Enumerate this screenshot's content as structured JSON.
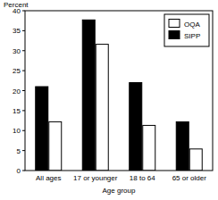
{
  "chart_data": {
    "type": "bar",
    "y_label": "Percent",
    "x_label": "Age group",
    "categories": [
      "All ages",
      "17 or younger",
      "18 to 64",
      "65 or older"
    ],
    "series": [
      {
        "name": "SIPP",
        "color": "#000000",
        "values": [
          21,
          37.7,
          22,
          12.2
        ]
      },
      {
        "name": "OQA",
        "color": "#ffffff",
        "values": [
          12.2,
          31.6,
          11.3,
          5.4
        ]
      }
    ],
    "ylim": [
      0,
      40
    ],
    "yticks": [
      0,
      5,
      10,
      15,
      20,
      25,
      30,
      35,
      40
    ],
    "grid": false,
    "legend": "top-right"
  }
}
